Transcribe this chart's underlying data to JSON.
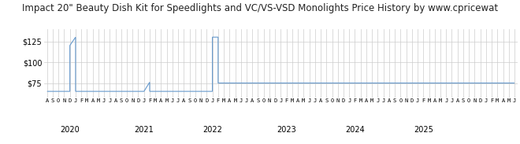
{
  "title": "Impact 20\" Beauty Dish Kit for Speedlights and VC/VS-VSD Monolights Price History by www.cpricewat",
  "title_fontsize": 8.5,
  "line_color": "#6699cc",
  "background_color": "#ffffff",
  "plot_bg_color": "#ffffff",
  "grid_color": "#cccccc",
  "ylim": [
    58,
    140
  ],
  "yticks": [
    75,
    100,
    125
  ],
  "x_axis_months": [
    "A",
    "S",
    "O",
    "N",
    "D",
    "J",
    "F",
    "M",
    "A",
    "M",
    "J",
    "J",
    "A",
    "S",
    "O",
    "N",
    "D",
    "J",
    "F",
    "M",
    "A",
    "M",
    "J",
    "J",
    "A",
    "S",
    "O",
    "N",
    "D",
    "J",
    "F",
    "M",
    "A",
    "M",
    "J",
    "J",
    "A",
    "S",
    "O",
    "N",
    "D",
    "J",
    "F",
    "M",
    "A",
    "M",
    "J",
    "J",
    "A",
    "S",
    "O",
    "N",
    "D",
    "J",
    "F",
    "M",
    "A",
    "M",
    "J",
    "J",
    "A",
    "S",
    "O",
    "N",
    "D",
    "J",
    "F",
    "M",
    "A",
    "M",
    "J",
    "J",
    "A",
    "S",
    "O",
    "N",
    "D",
    "J",
    "F",
    "M",
    "A",
    "M",
    "J"
  ],
  "year_labels": [
    {
      "label": "2020",
      "index": 4
    },
    {
      "label": "2021",
      "index": 17
    },
    {
      "label": "2022",
      "index": 29
    },
    {
      "label": "2023",
      "index": 42
    },
    {
      "label": "2024",
      "index": 54
    },
    {
      "label": "2025",
      "index": 66
    }
  ],
  "price_data": [
    [
      0,
      65
    ],
    [
      1,
      65
    ],
    [
      2,
      65
    ],
    [
      3,
      65
    ],
    [
      4,
      65
    ],
    [
      4,
      120
    ],
    [
      5,
      130
    ],
    [
      5,
      65
    ],
    [
      6,
      65
    ],
    [
      7,
      65
    ],
    [
      8,
      65
    ],
    [
      9,
      65
    ],
    [
      10,
      65
    ],
    [
      11,
      65
    ],
    [
      12,
      65
    ],
    [
      13,
      65
    ],
    [
      14,
      65
    ],
    [
      15,
      65
    ],
    [
      16,
      65
    ],
    [
      17,
      65
    ],
    [
      18,
      76
    ],
    [
      18,
      65
    ],
    [
      19,
      65
    ],
    [
      20,
      65
    ],
    [
      21,
      65
    ],
    [
      22,
      65
    ],
    [
      23,
      65
    ],
    [
      24,
      65
    ],
    [
      25,
      65
    ],
    [
      26,
      65
    ],
    [
      27,
      65
    ],
    [
      28,
      65
    ],
    [
      29,
      65
    ],
    [
      29,
      130
    ],
    [
      30,
      130
    ],
    [
      30,
      75
    ],
    [
      31,
      75
    ],
    [
      32,
      75
    ],
    [
      33,
      75
    ],
    [
      34,
      75
    ],
    [
      35,
      75
    ],
    [
      36,
      75
    ],
    [
      37,
      75
    ],
    [
      38,
      75
    ],
    [
      39,
      75
    ],
    [
      40,
      75
    ],
    [
      41,
      75
    ],
    [
      42,
      75
    ],
    [
      43,
      75
    ],
    [
      44,
      75
    ],
    [
      45,
      75
    ],
    [
      46,
      75
    ],
    [
      47,
      75
    ],
    [
      48,
      75
    ],
    [
      49,
      75
    ],
    [
      50,
      75
    ],
    [
      51,
      75
    ],
    [
      52,
      75
    ],
    [
      53,
      75
    ],
    [
      54,
      75
    ],
    [
      55,
      75
    ],
    [
      56,
      75
    ],
    [
      57,
      75
    ],
    [
      58,
      75
    ],
    [
      59,
      75
    ],
    [
      60,
      75
    ],
    [
      61,
      75
    ],
    [
      62,
      75
    ],
    [
      63,
      75
    ],
    [
      64,
      75
    ],
    [
      65,
      75
    ],
    [
      66,
      75
    ],
    [
      67,
      75
    ],
    [
      68,
      75
    ],
    [
      69,
      75
    ],
    [
      70,
      75
    ],
    [
      71,
      75
    ],
    [
      72,
      75
    ],
    [
      73,
      75
    ],
    [
      74,
      75
    ],
    [
      75,
      75
    ],
    [
      76,
      75
    ],
    [
      77,
      75
    ],
    [
      78,
      75
    ],
    [
      79,
      75
    ],
    [
      80,
      75
    ],
    [
      81,
      75
    ],
    [
      82,
      75
    ]
  ]
}
